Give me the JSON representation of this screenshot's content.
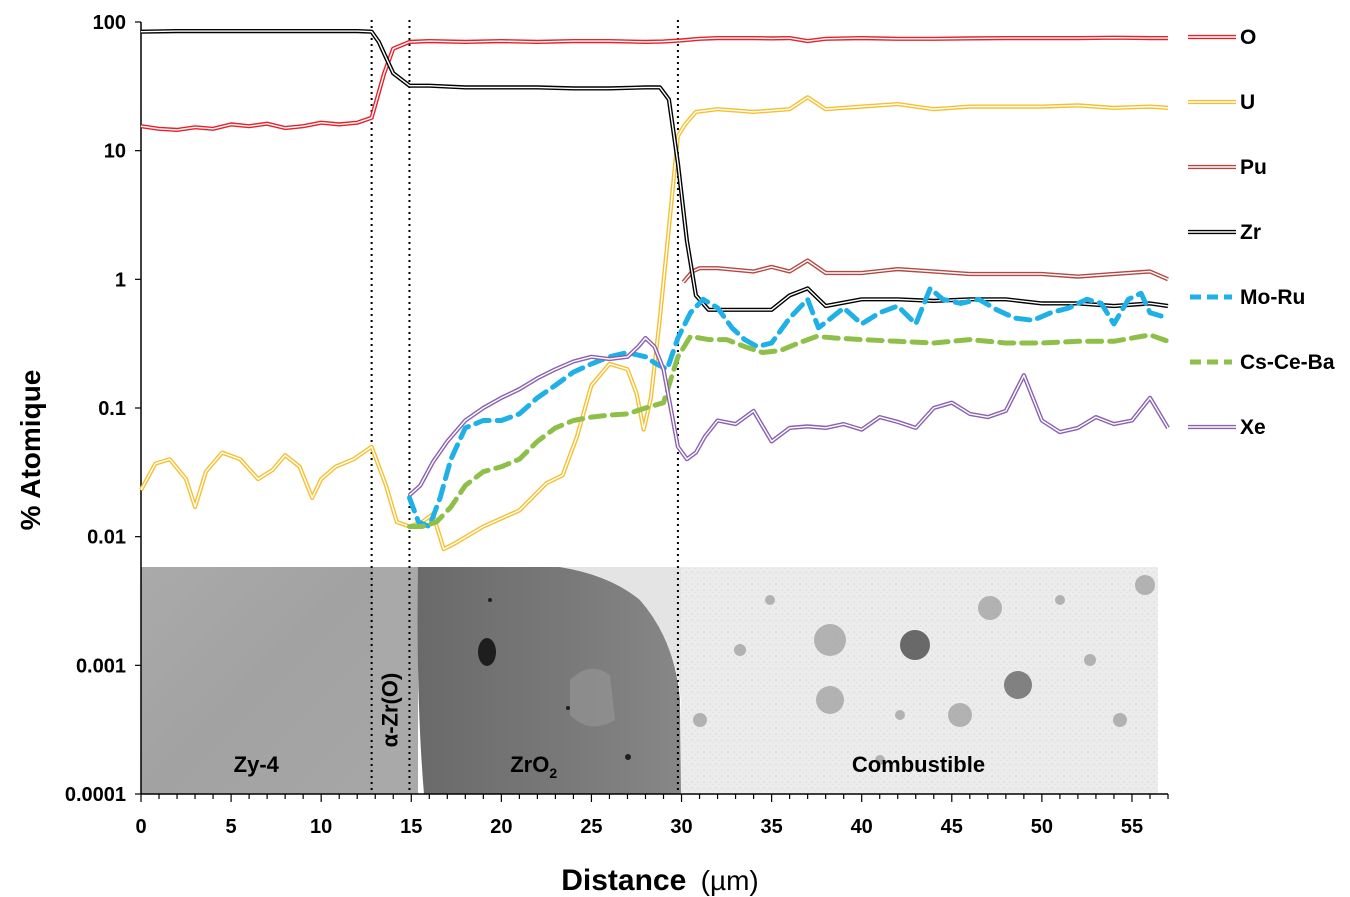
{
  "chart_data": {
    "type": "line",
    "xlabel": "Distance",
    "xlabel_unit": "(µm)",
    "ylabel": "% Atomique",
    "xlim": [
      0,
      57
    ],
    "ylim": [
      0.0001,
      100
    ],
    "y_scale": "log",
    "grid": false,
    "legend_position": "right",
    "x_ticks": [
      "0",
      "5",
      "10",
      "15",
      "20",
      "25",
      "30",
      "35",
      "40",
      "45",
      "50",
      "55"
    ],
    "y_ticks": [
      "100",
      "10",
      "1",
      "0.1",
      "0.01",
      "0.001",
      "0.0001"
    ],
    "boundaries_x": [
      12.8,
      14.9,
      29.8
    ],
    "regions": [
      {
        "label": "Zy-4",
        "x_start": 0,
        "x_end": 12.8
      },
      {
        "label": "α-Zr(O)",
        "x_start": 12.8,
        "x_end": 14.9
      },
      {
        "label": "ZrO",
        "label_sub": "2",
        "x_start": 14.9,
        "x_end": 29.8
      },
      {
        "label": "Combustible",
        "x_start": 29.8,
        "x_end": 56.5
      }
    ],
    "series": [
      {
        "name": "O",
        "color": "#e8202a",
        "style": "double",
        "x": [
          0,
          1,
          2,
          3,
          4,
          5,
          6,
          7,
          8,
          9,
          10,
          11,
          12,
          12.8,
          13.5,
          14,
          14.9,
          16,
          18,
          20,
          22,
          24,
          26,
          28,
          29,
          30,
          31,
          32,
          33,
          34,
          35,
          36,
          37,
          38,
          40,
          42,
          44,
          46,
          48,
          50,
          52,
          54,
          56,
          57
        ],
        "y": [
          15.5,
          14.8,
          14.5,
          15.2,
          14.8,
          16,
          15.5,
          16.2,
          15,
          15.5,
          16.5,
          16,
          16.5,
          18,
          40,
          62,
          70,
          71,
          70,
          71,
          70,
          71,
          71,
          70,
          70.5,
          72,
          74,
          75,
          75,
          75,
          74.5,
          75,
          71,
          74,
          75,
          74,
          74,
          74.5,
          75,
          75,
          75,
          75.5,
          75,
          75
        ]
      },
      {
        "name": "U",
        "color": "#f5c030",
        "style": "double",
        "x": [
          0,
          0.8,
          1.6,
          2.5,
          3,
          3.6,
          4.5,
          5.5,
          6.5,
          7.3,
          8,
          8.8,
          9.5,
          10,
          10.8,
          11.8,
          12.8,
          13.6,
          14.2,
          14.9,
          15.6,
          16.2,
          16.8,
          17.5,
          19,
          21,
          22.5,
          23.4,
          24.2,
          25,
          26,
          27,
          27.5,
          27.9,
          28.3,
          28.8,
          29.3,
          29.8,
          30.2,
          30.8,
          32,
          34,
          36,
          37,
          38,
          40,
          42,
          44,
          46,
          48,
          50,
          52,
          54,
          56,
          57
        ],
        "y": [
          0.023,
          0.037,
          0.04,
          0.028,
          0.017,
          0.032,
          0.045,
          0.04,
          0.028,
          0.033,
          0.043,
          0.035,
          0.02,
          0.028,
          0.035,
          0.04,
          0.05,
          0.025,
          0.013,
          0.012,
          0.013,
          0.015,
          0.008,
          0.009,
          0.012,
          0.016,
          0.026,
          0.03,
          0.06,
          0.15,
          0.22,
          0.2,
          0.13,
          0.068,
          0.12,
          0.5,
          2.5,
          13,
          16,
          20,
          21,
          20,
          21,
          26,
          21,
          22,
          23,
          21,
          22,
          22,
          22,
          22.5,
          21.5,
          22,
          21.5
        ]
      },
      {
        "name": "Pu",
        "color": "#b34743",
        "style": "double",
        "x": [
          30.1,
          30.6,
          31,
          32,
          34,
          35,
          36,
          37,
          38,
          40,
          42,
          44,
          46,
          48,
          50,
          52,
          54,
          56,
          57
        ],
        "y": [
          0.95,
          1.15,
          1.22,
          1.22,
          1.15,
          1.25,
          1.15,
          1.4,
          1.12,
          1.12,
          1.2,
          1.15,
          1.1,
          1.1,
          1.1,
          1.05,
          1.1,
          1.15,
          1.0
        ]
      },
      {
        "name": "Zr",
        "color": "#000000",
        "style": "double",
        "x": [
          0,
          2,
          4,
          6,
          8,
          10,
          12,
          12.8,
          13.2,
          14,
          14.9,
          16,
          18,
          20,
          22,
          24,
          26,
          28,
          28.8,
          29.3,
          29.8,
          30.3,
          30.8,
          31.5,
          33,
          35,
          36,
          37,
          38,
          40,
          42,
          44,
          46,
          48,
          50,
          52,
          54,
          56,
          57
        ],
        "y": [
          84,
          85,
          85,
          85,
          85,
          85,
          85,
          84,
          70,
          40,
          32,
          32,
          31,
          31,
          31,
          30.5,
          30.5,
          31,
          31,
          25,
          8,
          2,
          0.75,
          0.58,
          0.58,
          0.58,
          0.75,
          0.85,
          0.62,
          0.7,
          0.7,
          0.68,
          0.7,
          0.7,
          0.65,
          0.65,
          0.62,
          0.65,
          0.62
        ]
      },
      {
        "name": "Mo-Ru",
        "color": "#20b0e8",
        "style": "dashed",
        "x": [
          14.9,
          15.4,
          16,
          16.6,
          17.2,
          18,
          19,
          20,
          21,
          22,
          23,
          24,
          25,
          26,
          27,
          28,
          28.6,
          29.2,
          29.8,
          30.5,
          31.2,
          32,
          32.8,
          33.5,
          34.2,
          35,
          36,
          37,
          37.6,
          38.3,
          39,
          40,
          41,
          42,
          43,
          43.8,
          44.5,
          45.5,
          46.5,
          47.5,
          48.5,
          49.5,
          50.5,
          51.5,
          52.5,
          53.3,
          54,
          54.8,
          55.5,
          56,
          57
        ],
        "y": [
          0.02,
          0.013,
          0.012,
          0.02,
          0.04,
          0.07,
          0.08,
          0.08,
          0.09,
          0.12,
          0.15,
          0.19,
          0.22,
          0.25,
          0.27,
          0.25,
          0.22,
          0.2,
          0.35,
          0.55,
          0.7,
          0.6,
          0.42,
          0.34,
          0.3,
          0.32,
          0.5,
          0.7,
          0.42,
          0.5,
          0.6,
          0.45,
          0.55,
          0.62,
          0.45,
          0.85,
          0.7,
          0.65,
          0.7,
          0.58,
          0.5,
          0.48,
          0.55,
          0.6,
          0.7,
          0.65,
          0.45,
          0.7,
          0.78,
          0.55,
          0.5
        ]
      },
      {
        "name": "Cs-Ce-Ba",
        "color": "#8ec049",
        "style": "dashed",
        "x": [
          14.9,
          15.6,
          16.4,
          17.2,
          18,
          19,
          20,
          21,
          22,
          23,
          24,
          25,
          26,
          27,
          28,
          29,
          29.8,
          30.5,
          31.5,
          32.5,
          33.5,
          34.5,
          35.5,
          36.5,
          37.5,
          38.5,
          40,
          42,
          44,
          46,
          48,
          50,
          52,
          54,
          56,
          57
        ],
        "y": [
          0.012,
          0.012,
          0.013,
          0.017,
          0.025,
          0.032,
          0.035,
          0.04,
          0.055,
          0.07,
          0.08,
          0.085,
          0.088,
          0.09,
          0.1,
          0.11,
          0.25,
          0.36,
          0.34,
          0.34,
          0.3,
          0.27,
          0.28,
          0.32,
          0.36,
          0.35,
          0.34,
          0.33,
          0.32,
          0.34,
          0.32,
          0.32,
          0.33,
          0.33,
          0.37,
          0.33
        ]
      },
      {
        "name": "Xe",
        "color": "#8a60b0",
        "style": "double",
        "x": [
          14.9,
          15.5,
          16.2,
          17,
          18,
          19,
          20,
          21,
          22,
          23,
          24,
          25,
          26,
          27,
          27.6,
          28,
          28.5,
          29,
          29.4,
          29.8,
          30.3,
          30.8,
          31.3,
          32,
          33,
          34,
          35,
          36,
          37,
          38,
          39,
          40,
          41,
          42,
          43,
          44,
          45,
          46,
          47,
          48,
          49,
          50,
          51,
          52,
          53,
          54,
          55,
          56,
          57
        ],
        "y": [
          0.021,
          0.025,
          0.038,
          0.055,
          0.08,
          0.1,
          0.12,
          0.14,
          0.17,
          0.2,
          0.23,
          0.25,
          0.24,
          0.25,
          0.3,
          0.35,
          0.3,
          0.2,
          0.1,
          0.05,
          0.04,
          0.045,
          0.06,
          0.08,
          0.075,
          0.095,
          0.055,
          0.07,
          0.072,
          0.07,
          0.075,
          0.068,
          0.085,
          0.078,
          0.07,
          0.1,
          0.11,
          0.09,
          0.085,
          0.095,
          0.18,
          0.08,
          0.065,
          0.07,
          0.085,
          0.075,
          0.08,
          0.12,
          0.07
        ]
      }
    ]
  }
}
